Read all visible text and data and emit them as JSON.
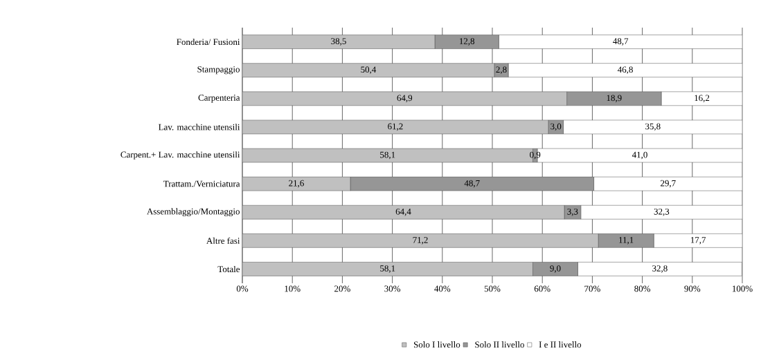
{
  "chart_data": {
    "type": "bar",
    "orientation": "horizontal",
    "stacked": true,
    "grid": "x",
    "legend": "bottom",
    "categories": [
      "Fonderia/ Fusioni",
      "Stampaggio",
      "Carpenteria",
      "Lav. macchine utensili",
      "Carpent.+ Lav. macchine utensili",
      "Trattam./Verniciatura",
      "Assemblaggio/Montaggio",
      "Altre fasi",
      "Totale"
    ],
    "series": [
      {
        "name": "Solo I livello",
        "color": "#c0c0c0",
        "values": [
          38.5,
          50.4,
          64.9,
          61.2,
          58.1,
          21.6,
          64.4,
          71.2,
          58.1
        ],
        "value_labels": [
          "38,5",
          "50,4",
          "64,9",
          "61,2",
          "58,1",
          "21,6",
          "64,4",
          "71,2",
          "58,1"
        ]
      },
      {
        "name": "Solo II livello",
        "color": "#969696",
        "values": [
          12.8,
          2.8,
          18.9,
          3.0,
          0.9,
          48.7,
          3.3,
          11.1,
          9.0
        ],
        "value_labels": [
          "12,8",
          "2,8",
          "18,9",
          "3,0",
          "0,9",
          "48,7",
          "3,3",
          "11,1",
          "9,0"
        ]
      },
      {
        "name": "I e II livello",
        "color": "#ffffff",
        "values": [
          48.7,
          46.8,
          16.2,
          35.8,
          41.0,
          29.7,
          32.3,
          17.7,
          32.8
        ],
        "value_labels": [
          "48,7",
          "46,8",
          "16,2",
          "35,8",
          "41,0",
          "29,7",
          "32,3",
          "17,7",
          "32,8"
        ]
      }
    ],
    "xlim": [
      0,
      100
    ],
    "xticks": [
      {
        "value": 0,
        "label": "0%"
      },
      {
        "value": 10,
        "label": "10%"
      },
      {
        "value": 20,
        "label": "20%"
      },
      {
        "value": 30,
        "label": "30%"
      },
      {
        "value": 40,
        "label": "40%"
      },
      {
        "value": 50,
        "label": "50%"
      },
      {
        "value": 60,
        "label": "60%"
      },
      {
        "value": 70,
        "label": "70%"
      },
      {
        "value": 80,
        "label": "80%"
      },
      {
        "value": 90,
        "label": "90%"
      },
      {
        "value": 100,
        "label": "100%"
      }
    ]
  }
}
